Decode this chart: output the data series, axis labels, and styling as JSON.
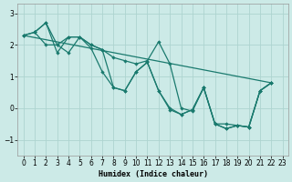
{
  "xlabel": "Humidex (Indice chaleur)",
  "bg_color": "#cceae7",
  "grid_color": "#add4d0",
  "line_color": "#1a7a6e",
  "xlim": [
    -0.5,
    23.5
  ],
  "ylim": [
    -1.5,
    3.3
  ],
  "yticks": [
    -1,
    0,
    1,
    2,
    3
  ],
  "xticks": [
    0,
    1,
    2,
    3,
    4,
    5,
    6,
    7,
    8,
    9,
    10,
    11,
    12,
    13,
    14,
    15,
    16,
    17,
    18,
    19,
    20,
    21,
    22,
    23
  ],
  "series": [
    {
      "x": [
        0,
        1,
        2,
        3,
        4,
        5,
        6,
        7,
        8,
        9,
        10,
        11,
        12,
        13,
        14,
        15,
        16,
        17,
        18,
        19,
        20,
        21,
        22
      ],
      "y": [
        2.3,
        2.4,
        2.0,
        2.0,
        1.75,
        2.25,
        1.9,
        1.15,
        0.65,
        0.55,
        1.15,
        1.45,
        0.55,
        -0.05,
        -0.2,
        -0.05,
        0.65,
        -0.5,
        -0.65,
        -0.55,
        -0.6,
        0.55,
        0.8
      ]
    },
    {
      "x": [
        0,
        1,
        2,
        3,
        4,
        5,
        6,
        7,
        8,
        9,
        10,
        11,
        12,
        13,
        14,
        15,
        16,
        17,
        18,
        19,
        20,
        21,
        22
      ],
      "y": [
        2.3,
        2.4,
        2.7,
        2.0,
        2.25,
        2.25,
        2.0,
        1.85,
        1.6,
        1.5,
        1.4,
        1.5,
        2.1,
        1.4,
        0.0,
        -0.1,
        0.65,
        -0.5,
        -0.5,
        -0.55,
        -0.6,
        0.55,
        0.8
      ]
    },
    {
      "x": [
        1,
        2,
        3,
        4,
        5,
        6,
        7,
        8,
        9,
        10,
        11,
        12,
        13,
        14,
        15,
        16,
        17,
        18,
        19,
        20,
        21,
        22
      ],
      "y": [
        2.4,
        2.7,
        1.75,
        2.25,
        2.25,
        2.0,
        1.85,
        0.65,
        0.55,
        1.15,
        1.45,
        0.55,
        0.0,
        -0.2,
        -0.05,
        0.65,
        -0.5,
        -0.65,
        -0.55,
        -0.6,
        0.55,
        0.8
      ]
    },
    {
      "x": [
        0,
        22
      ],
      "y": [
        2.3,
        0.8
      ]
    }
  ]
}
